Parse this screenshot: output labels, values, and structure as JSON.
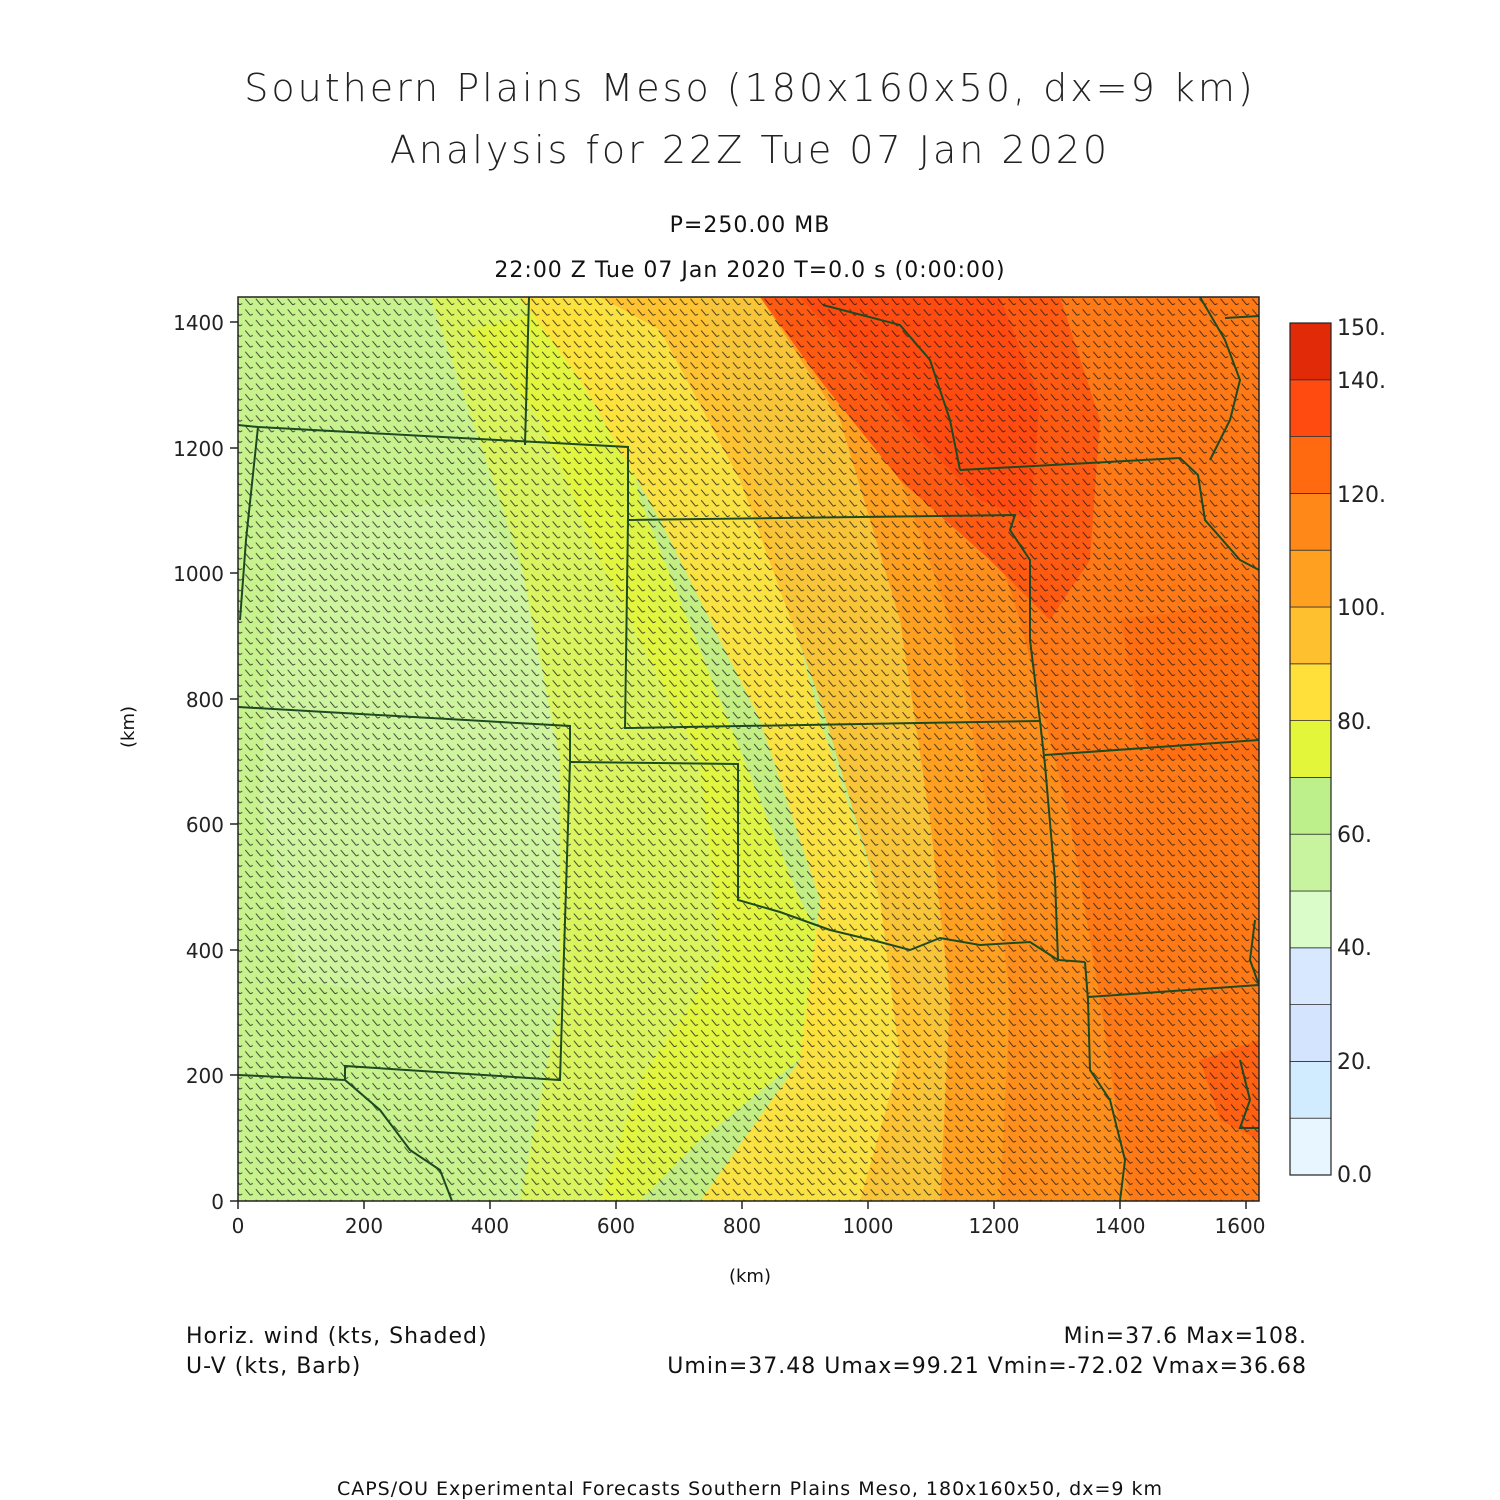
{
  "title": {
    "line1": "Southern Plains Meso (180x160x50, dx=9 km)",
    "line2": "Analysis for 22Z Tue 07 Jan 2020"
  },
  "subtitle": {
    "level": "P=250.00 MB",
    "time": "22:00 Z Tue 07 Jan 2020   T=0.0 s (0:00:00)"
  },
  "axes": {
    "xlabel": "(km)",
    "ylabel": "(km)",
    "xlim": [
      0,
      1620
    ],
    "ylim": [
      0,
      1440
    ],
    "xticks": [
      "0",
      "200",
      "400",
      "600",
      "800",
      "1000",
      "1200",
      "1400",
      "1600"
    ],
    "yticks": [
      "0",
      "200",
      "400",
      "600",
      "800",
      "1000",
      "1200",
      "1400"
    ]
  },
  "colorbar": {
    "levels": [
      "0.0",
      "20.",
      "40.",
      "60.",
      "80.",
      "100.",
      "120.",
      "140.",
      "150."
    ],
    "colors": [
      "#e8f6ff",
      "#d2ecff",
      "#d4e4ff",
      "#d8e8ff",
      "#dafcc8",
      "#c8f4a0",
      "#bdf08a",
      "#e4f63a",
      "#ffe03a",
      "#ffc030",
      "#ffa020",
      "#ff8818",
      "#ff6a10",
      "#ff4a10",
      "#e02a08",
      "#c21808",
      "#a80a04"
    ]
  },
  "footer": {
    "left1": "Horiz. wind (kts, Shaded)",
    "left2": "U-V (kts, Barb)",
    "right1": "Min=37.6  Max=108.",
    "right2": "Umin=37.48  Umax=99.21  Vmin=-72.02  Vmax=36.68",
    "credit": "CAPS/OU Experimental Forecasts   Southern Plains Meso, 180x160x50, dx=9 km"
  },
  "chart_data": {
    "type": "heatmap",
    "field": "Horiz. wind (kts)",
    "min": 37.6,
    "max": 108.0,
    "umin": 37.48,
    "umax": 99.21,
    "vmin": -72.02,
    "vmax": 36.68
  }
}
